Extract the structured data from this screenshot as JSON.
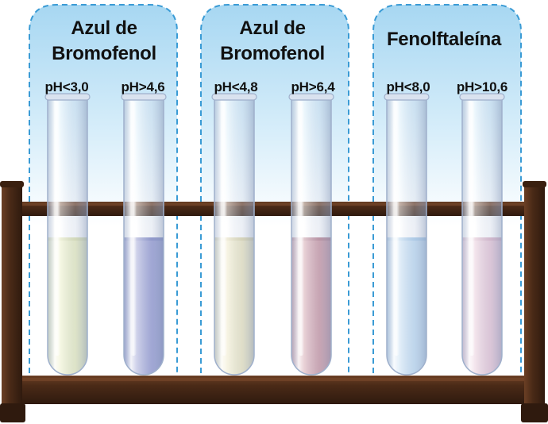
{
  "groups": [
    {
      "title_lines": [
        "Azul de",
        "Bromofenol"
      ],
      "tubes": [
        {
          "label": "pH<3,0",
          "liquid_color": "#e7ebb8",
          "liquid_edge": "#cfd49a"
        },
        {
          "label": "pH>4,6",
          "liquid_color": "#8a8fcb",
          "liquid_edge": "#6a70b6"
        }
      ]
    },
    {
      "title_lines": [
        "Azul de",
        "Bromofenol"
      ],
      "tubes": [
        {
          "label": "pH<4,8",
          "liquid_color": "#ebe4ba",
          "liquid_edge": "#d3ca98"
        },
        {
          "label": "pH>6,4",
          "liquid_color": "#c78c99",
          "liquid_edge": "#a8697a"
        }
      ]
    },
    {
      "title_lines": [
        "Fenolftaleína"
      ],
      "tubes": [
        {
          "label": "pH<8,0",
          "liquid_color": "#b9d7f0",
          "liquid_edge": "#93bde3"
        },
        {
          "label": "pH>10,6",
          "liquid_color": "#e4bfd1",
          "liquid_edge": "#cfa0b8"
        }
      ]
    }
  ],
  "colors": {
    "panel_border": "#3a9bd5",
    "panel_top": "#a8d8f3",
    "rack_wood": "#4a2a17",
    "rack_highlight": "#7a4a2c"
  }
}
